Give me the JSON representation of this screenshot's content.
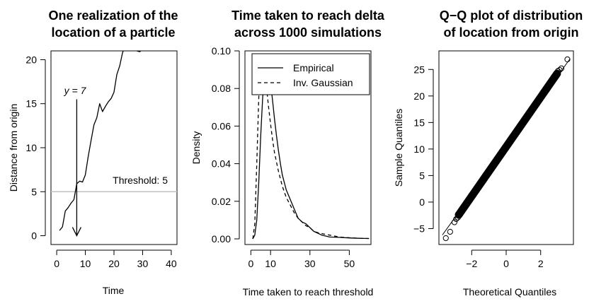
{
  "chart_data": [
    {
      "type": "line",
      "title_lines": [
        "One realization of the",
        "location of a particle"
      ],
      "xlabel": "Time",
      "ylabel": "Distance from origin",
      "xlim": [
        -2,
        42
      ],
      "ylim": [
        -1,
        21
      ],
      "xticks": [
        0,
        10,
        20,
        30,
        40
      ],
      "yticks": [
        0,
        5,
        10,
        15,
        20
      ],
      "threshold": {
        "value": 5,
        "label": "Threshold: 5",
        "color": "#c0c0c0"
      },
      "arrow": {
        "x": 7,
        "y_start": 15.5,
        "y_end": 0,
        "label": "y = 7"
      },
      "series": [
        {
          "x": [
            1,
            2,
            3,
            4,
            5,
            6,
            7,
            8,
            9,
            10,
            11,
            12,
            13,
            14,
            15,
            16,
            17,
            18,
            19,
            20,
            21,
            22,
            23,
            24,
            25,
            26,
            27,
            28,
            29,
            30
          ],
          "y": [
            0.6,
            1.0,
            2.8,
            3.2,
            3.7,
            4.1,
            5.9,
            6.2,
            6.1,
            6.9,
            9.0,
            10.8,
            12.6,
            13.4,
            15.0,
            14.1,
            14.7,
            15.2,
            15.6,
            16.3,
            18.3,
            19.3,
            20.8,
            21.6,
            21.0,
            21.4,
            21.3,
            21.0,
            20.9,
            21.2
          ]
        }
      ]
    },
    {
      "type": "line",
      "title_lines": [
        "Time taken to reach delta",
        "across 1000 simulations"
      ],
      "xlabel": "Time taken to reach threshold",
      "ylabel": "Density",
      "xlim": [
        -3,
        61
      ],
      "ylim": [
        -0.003,
        0.1
      ],
      "xticks": [
        0,
        10,
        30,
        50
      ],
      "yticks": [
        0.0,
        0.02,
        0.04,
        0.06,
        0.08,
        0.1
      ],
      "ytick_labels": [
        "0.00",
        "0.02",
        "0.04",
        "0.06",
        "0.08",
        "0.10"
      ],
      "legend": {
        "position": "top-right",
        "entries": [
          "Empirical",
          "Inv. Gaussian"
        ]
      },
      "series": [
        {
          "name": "Empirical",
          "style": "solid",
          "x": [
            1,
            2,
            3,
            4,
            5,
            6,
            7,
            8,
            9,
            10,
            11,
            12,
            13,
            14,
            15,
            16,
            18,
            20,
            22,
            24,
            26,
            28,
            30,
            32,
            34,
            36,
            38,
            40,
            45,
            50,
            55,
            60
          ],
          "y": [
            0.0,
            0.002,
            0.01,
            0.03,
            0.055,
            0.075,
            0.087,
            0.091,
            0.089,
            0.083,
            0.074,
            0.064,
            0.055,
            0.047,
            0.04,
            0.034,
            0.026,
            0.021,
            0.016,
            0.011,
            0.009,
            0.008,
            0.006,
            0.004,
            0.003,
            0.002,
            0.0015,
            0.001,
            0.0008,
            0.0005,
            0.0003,
            0.0002
          ]
        },
        {
          "name": "Inv. Gaussian",
          "style": "dashed",
          "x": [
            1,
            2,
            3,
            4,
            5,
            6,
            7,
            8,
            9,
            10,
            11,
            12,
            14,
            16,
            18,
            20,
            22,
            24,
            26,
            28,
            30,
            32,
            35,
            40,
            45,
            50,
            55,
            60
          ],
          "y": [
            0.0,
            0.008,
            0.04,
            0.075,
            0.094,
            0.096,
            0.09,
            0.08,
            0.07,
            0.061,
            0.053,
            0.046,
            0.036,
            0.028,
            0.022,
            0.018,
            0.014,
            0.011,
            0.009,
            0.007,
            0.006,
            0.004,
            0.003,
            0.002,
            0.001,
            0.0006,
            0.0003,
            0.0002
          ]
        }
      ]
    },
    {
      "type": "scatter",
      "title_lines": [
        "Q−Q plot of distribution",
        "of location from origin"
      ],
      "xlabel": "Theoretical Quantiles",
      "ylabel": "Sample Quantiles",
      "xlim": [
        -3.9,
        3.9
      ],
      "ylim": [
        -8,
        28.5
      ],
      "xticks": [
        -2,
        0,
        2
      ],
      "xtick_labels": [
        "−2",
        "0",
        "2"
      ],
      "yticks": [
        -5,
        0,
        5,
        10,
        15,
        20,
        25
      ],
      "ytick_labels": [
        "−5",
        "0",
        "5",
        "10",
        "15",
        "20",
        "25"
      ],
      "reference_line": {
        "x": [
          -3.7,
          3.7
        ],
        "y": [
          -6.2,
          27
        ]
      },
      "points": [
        {
          "x": -3.5,
          "y": -6.8
        },
        {
          "x": -3.25,
          "y": -5.6
        },
        {
          "x": -3.0,
          "y": -3.8
        },
        {
          "x": -2.9,
          "y": -3.2
        },
        {
          "x": -2.8,
          "y": -2.9
        },
        {
          "x": 3.0,
          "y": 24.7
        },
        {
          "x": 3.1,
          "y": 24.9
        },
        {
          "x": 3.2,
          "y": 25.2
        },
        {
          "x": 3.55,
          "y": 26.9
        }
      ],
      "dense_band": {
        "x": [
          -2.75,
          2.95
        ],
        "y": [
          -2.4,
          24.2
        ]
      }
    }
  ]
}
